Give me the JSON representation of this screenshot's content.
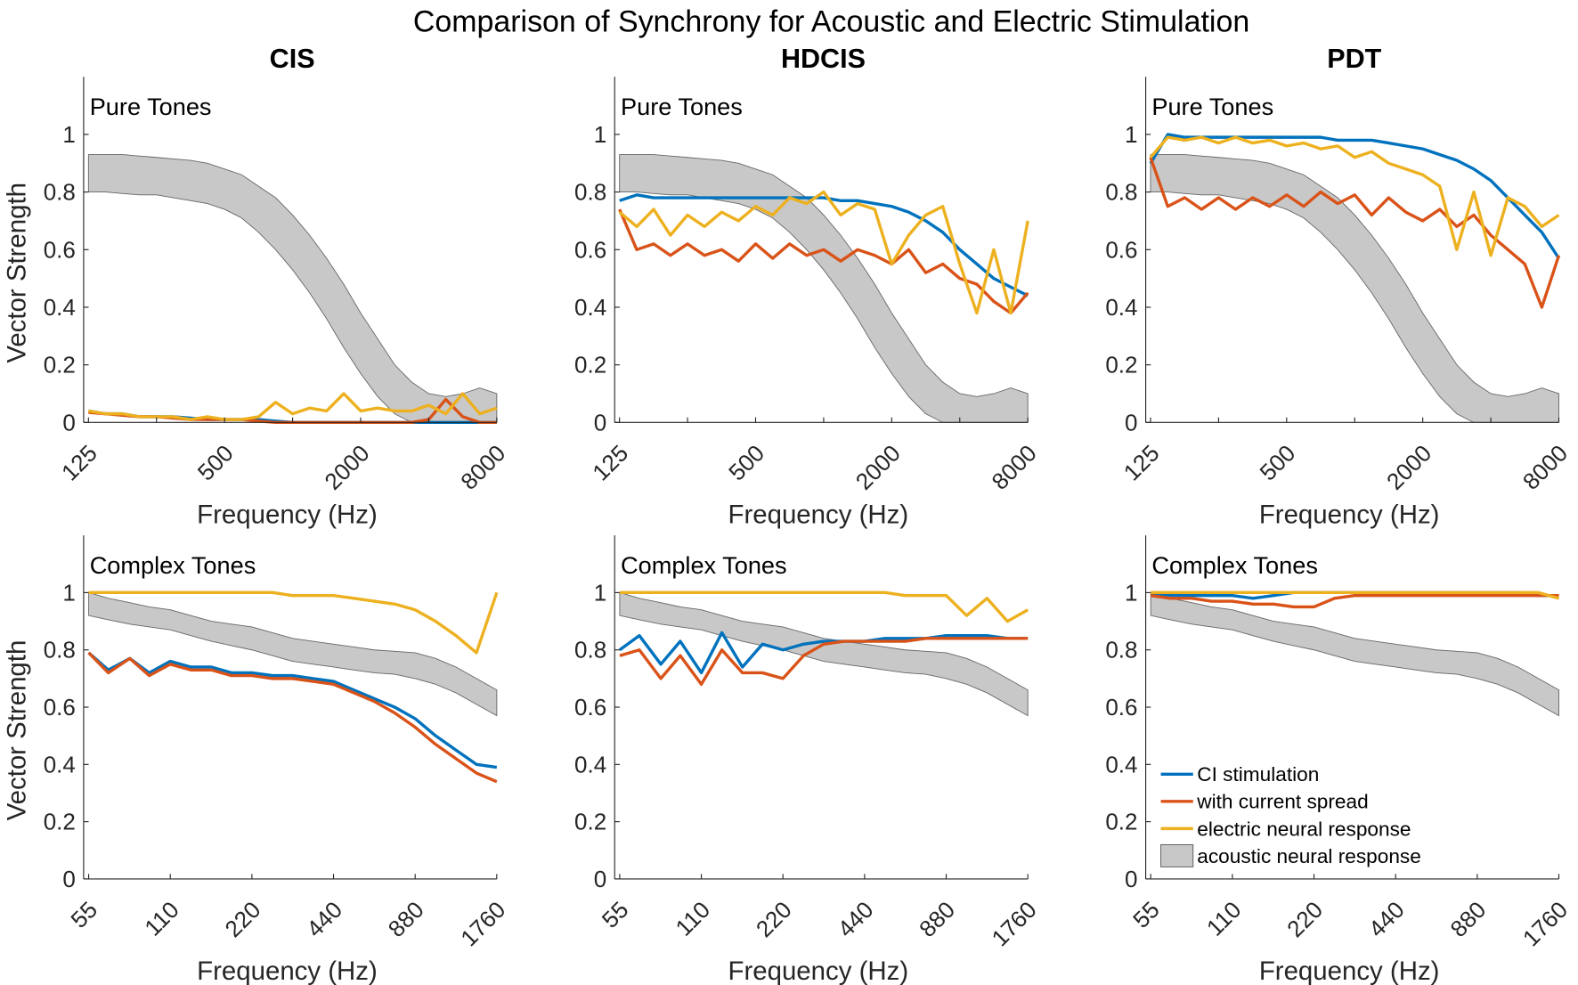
{
  "chart_data": {
    "type": "line",
    "title": "Comparison of Synchrony for Acoustic and Electric Stimulation",
    "columns": [
      "CIS",
      "HDCIS",
      "PDT"
    ],
    "ylabel": "Vector Strength",
    "xlabel": "Frequency (Hz)",
    "xscale": "log",
    "ylim": [
      0,
      1.2
    ],
    "yticks": [
      0,
      0.2,
      0.4,
      0.6,
      0.8,
      1
    ],
    "ytick_labels": [
      "0",
      "0.2",
      "0.4",
      "0.6",
      "0.8",
      "1"
    ],
    "grid": false,
    "colors": {
      "ci": "#0072BD",
      "spread": "#D95319",
      "electric": "#EDB120",
      "acoustic": "#C8C8C8"
    },
    "legend": {
      "placement": "bottom-left of PDT Complex Tones panel",
      "entries": [
        "CI stimulation",
        "with current spread",
        "electric neural response",
        "acoustic neural response"
      ]
    },
    "rows": [
      {
        "label": "Pure Tones",
        "xlim": [
          119,
          8000
        ],
        "xticks": [
          125,
          250,
          500,
          1000,
          2000,
          4000,
          8000
        ],
        "xtick_labels": [
          "125",
          "",
          "500",
          "",
          "2000",
          "",
          "8000"
        ],
        "x": [
          125,
          149,
          177,
          210,
          250,
          297,
          354,
          420,
          500,
          595,
          707,
          841,
          1000,
          1189,
          1414,
          1682,
          2000,
          2378,
          2828,
          3364,
          4000,
          4757,
          5657,
          6727,
          8000
        ],
        "acoustic_upper": [
          0.93,
          0.93,
          0.93,
          0.925,
          0.92,
          0.915,
          0.91,
          0.9,
          0.88,
          0.86,
          0.82,
          0.78,
          0.72,
          0.65,
          0.57,
          0.48,
          0.38,
          0.29,
          0.2,
          0.14,
          0.1,
          0.09,
          0.1,
          0.12,
          0.1
        ],
        "acoustic_lower": [
          0.8,
          0.8,
          0.795,
          0.79,
          0.79,
          0.78,
          0.77,
          0.76,
          0.74,
          0.71,
          0.66,
          0.6,
          0.53,
          0.45,
          0.36,
          0.26,
          0.17,
          0.09,
          0.03,
          0.0,
          0.0,
          0.0,
          0.0,
          0.0,
          0.0
        ],
        "panels": [
          {
            "ci": [
              0.04,
              0.03,
              0.03,
              0.02,
              0.02,
              0.02,
              0.015,
              0.01,
              0.01,
              0.01,
              0.01,
              0.005,
              0,
              0,
              0,
              0,
              0,
              0,
              0,
              0,
              0,
              0,
              0,
              0,
              0
            ],
            "spread": [
              0.035,
              0.03,
              0.025,
              0.02,
              0.02,
              0.015,
              0.01,
              0.01,
              0.01,
              0.01,
              0.005,
              0,
              0,
              0,
              0,
              0,
              0,
              0,
              0,
              0,
              0.01,
              0.08,
              0.02,
              0,
              0
            ],
            "electric": [
              0.04,
              0.03,
              0.03,
              0.02,
              0.02,
              0.02,
              0.01,
              0.02,
              0.01,
              0.01,
              0.02,
              0.07,
              0.03,
              0.05,
              0.04,
              0.1,
              0.04,
              0.05,
              0.04,
              0.04,
              0.06,
              0.03,
              0.1,
              0.03,
              0.05
            ]
          },
          {
            "ci": [
              0.77,
              0.79,
              0.78,
              0.78,
              0.78,
              0.78,
              0.78,
              0.78,
              0.78,
              0.78,
              0.78,
              0.78,
              0.78,
              0.77,
              0.77,
              0.76,
              0.75,
              0.73,
              0.7,
              0.66,
              0.6,
              0.55,
              0.5,
              0.47,
              0.44
            ],
            "spread": [
              0.74,
              0.6,
              0.62,
              0.58,
              0.62,
              0.58,
              0.6,
              0.56,
              0.62,
              0.57,
              0.62,
              0.58,
              0.6,
              0.56,
              0.6,
              0.58,
              0.55,
              0.6,
              0.52,
              0.55,
              0.5,
              0.48,
              0.42,
              0.38,
              0.45
            ],
            "electric": [
              0.73,
              0.68,
              0.74,
              0.65,
              0.72,
              0.68,
              0.73,
              0.7,
              0.75,
              0.72,
              0.78,
              0.76,
              0.8,
              0.72,
              0.76,
              0.74,
              0.55,
              0.65,
              0.72,
              0.75,
              0.55,
              0.38,
              0.6,
              0.38,
              0.7
            ]
          },
          {
            "ci": [
              0.9,
              1.0,
              0.99,
              0.99,
              0.99,
              0.99,
              0.99,
              0.99,
              0.99,
              0.99,
              0.99,
              0.98,
              0.98,
              0.98,
              0.97,
              0.96,
              0.95,
              0.93,
              0.91,
              0.88,
              0.84,
              0.78,
              0.72,
              0.66,
              0.57
            ],
            "spread": [
              0.92,
              0.75,
              0.78,
              0.74,
              0.78,
              0.74,
              0.78,
              0.75,
              0.79,
              0.75,
              0.8,
              0.76,
              0.79,
              0.72,
              0.78,
              0.73,
              0.7,
              0.74,
              0.68,
              0.72,
              0.65,
              0.6,
              0.55,
              0.4,
              0.58
            ],
            "electric": [
              0.92,
              0.99,
              0.98,
              0.99,
              0.97,
              0.99,
              0.97,
              0.98,
              0.96,
              0.97,
              0.95,
              0.96,
              0.92,
              0.94,
              0.9,
              0.88,
              0.86,
              0.82,
              0.6,
              0.8,
              0.58,
              0.78,
              0.75,
              0.68,
              0.72
            ]
          }
        ]
      },
      {
        "label": "Complex Tones",
        "xlim": [
          52.7,
          1760
        ],
        "xticks": [
          55,
          110,
          220,
          440,
          880,
          1760
        ],
        "xtick_labels": [
          "55",
          "110",
          "220",
          "440",
          "880",
          "1760"
        ],
        "x": [
          55,
          65,
          78,
          92,
          110,
          131,
          156,
          185,
          220,
          262,
          311,
          370,
          440,
          523,
          622,
          740,
          880,
          1047,
          1245,
          1480,
          1760
        ],
        "acoustic_upper": [
          1.0,
          0.98,
          0.965,
          0.95,
          0.94,
          0.92,
          0.9,
          0.89,
          0.88,
          0.86,
          0.84,
          0.83,
          0.82,
          0.81,
          0.8,
          0.795,
          0.79,
          0.77,
          0.74,
          0.7,
          0.66
        ],
        "acoustic_lower": [
          0.92,
          0.905,
          0.89,
          0.88,
          0.87,
          0.85,
          0.83,
          0.815,
          0.8,
          0.78,
          0.76,
          0.75,
          0.74,
          0.73,
          0.72,
          0.715,
          0.7,
          0.68,
          0.65,
          0.61,
          0.57
        ],
        "panels": [
          {
            "ci": [
              0.79,
              0.73,
              0.77,
              0.72,
              0.76,
              0.74,
              0.74,
              0.72,
              0.72,
              0.71,
              0.71,
              0.7,
              0.69,
              0.66,
              0.63,
              0.6,
              0.56,
              0.5,
              0.45,
              0.4,
              0.39
            ],
            "spread": [
              0.79,
              0.72,
              0.77,
              0.71,
              0.75,
              0.73,
              0.73,
              0.71,
              0.71,
              0.7,
              0.7,
              0.69,
              0.68,
              0.65,
              0.62,
              0.58,
              0.53,
              0.47,
              0.42,
              0.37,
              0.34
            ],
            "electric": [
              1,
              1,
              1,
              1,
              1,
              1,
              1,
              1,
              1,
              1,
              0.99,
              0.99,
              0.99,
              0.98,
              0.97,
              0.96,
              0.94,
              0.9,
              0.85,
              0.79,
              1
            ]
          },
          {
            "ci": [
              0.8,
              0.85,
              0.75,
              0.83,
              0.72,
              0.86,
              0.74,
              0.82,
              0.8,
              0.82,
              0.83,
              0.83,
              0.83,
              0.84,
              0.84,
              0.84,
              0.85,
              0.85,
              0.85,
              0.84,
              0.84
            ],
            "spread": [
              0.78,
              0.8,
              0.7,
              0.78,
              0.68,
              0.8,
              0.72,
              0.72,
              0.7,
              0.78,
              0.82,
              0.83,
              0.83,
              0.83,
              0.83,
              0.84,
              0.84,
              0.84,
              0.84,
              0.84,
              0.84
            ],
            "electric": [
              1,
              1,
              1,
              1,
              1,
              1,
              1,
              1,
              1,
              1,
              1,
              1,
              1,
              1,
              0.99,
              0.99,
              0.99,
              0.92,
              0.98,
              0.9,
              0.94
            ]
          },
          {
            "ci": [
              0.99,
              0.99,
              0.99,
              0.99,
              0.99,
              0.98,
              0.99,
              1,
              1,
              1,
              1,
              1,
              1,
              1,
              1,
              1,
              1,
              1,
              1,
              0.99,
              0.99
            ],
            "spread": [
              0.99,
              0.98,
              0.98,
              0.97,
              0.97,
              0.96,
              0.96,
              0.95,
              0.95,
              0.98,
              0.99,
              0.99,
              0.99,
              0.99,
              0.99,
              0.99,
              0.99,
              0.99,
              0.99,
              0.99,
              0.99
            ],
            "electric": [
              1,
              1,
              1,
              1,
              1,
              1,
              1,
              1,
              1,
              1,
              1,
              1,
              1,
              1,
              1,
              1,
              1,
              1,
              1,
              1,
              0.98
            ]
          }
        ]
      }
    ]
  }
}
